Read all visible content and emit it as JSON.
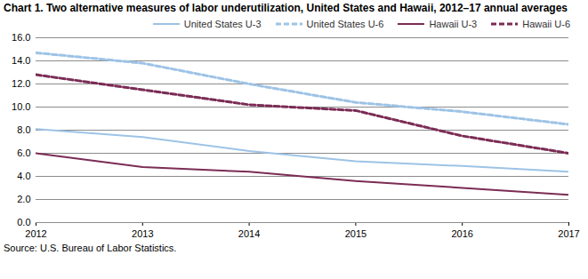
{
  "chart_data": {
    "type": "line",
    "title": "Chart 1. Two alternative measures of labor underutilization, United States and Hawaii, 2012–17 annual averages",
    "source": "Source: U.S. Bureau of Labor Statistics.",
    "x": [
      2012,
      2013,
      2014,
      2015,
      2016,
      2017
    ],
    "xlim": [
      2012,
      2017
    ],
    "xticks": [
      2012,
      2013,
      2014,
      2015,
      2016,
      2017
    ],
    "ylim": [
      0,
      16
    ],
    "yticks": [
      {
        "value": 0,
        "label": "0.0"
      },
      {
        "value": 2,
        "label": "2.0"
      },
      {
        "value": 4,
        "label": "4.0"
      },
      {
        "value": 6,
        "label": "6.0"
      },
      {
        "value": 8,
        "label": "8.0"
      },
      {
        "value": 10,
        "label": "10.0"
      },
      {
        "value": 12,
        "label": "12.0"
      },
      {
        "value": 14,
        "label": "14.0"
      },
      {
        "value": 16,
        "label": "16.0"
      }
    ],
    "grid": true,
    "legend": "top-right",
    "series": [
      {
        "name": "United States  U-3",
        "color": "#9dc3e6",
        "line_style": "solid",
        "values": [
          8.1,
          7.4,
          6.2,
          5.3,
          4.9,
          4.4
        ]
      },
      {
        "name": "United States  U-6",
        "color": "#9dc3e6",
        "line_style": "dashed",
        "values": [
          14.7,
          13.8,
          12.0,
          10.4,
          9.6,
          8.5
        ]
      },
      {
        "name": "Hawaii  U-3",
        "color": "#7b2c55",
        "line_style": "solid",
        "values": [
          6.0,
          4.8,
          4.4,
          3.6,
          3.0,
          2.4
        ]
      },
      {
        "name": "Hawaii  U-6",
        "color": "#7b2c55",
        "line_style": "dashed",
        "values": [
          12.8,
          11.5,
          10.2,
          9.7,
          7.5,
          6.0
        ]
      }
    ]
  }
}
